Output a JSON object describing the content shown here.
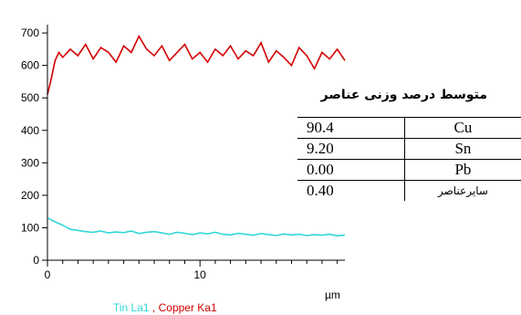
{
  "chart_data": {
    "type": "line",
    "x_axis": {
      "unit": "µm",
      "ticks": [
        0,
        10
      ],
      "xlim": [
        0,
        19.5
      ]
    },
    "y_axis": {
      "ticks": [
        0,
        100,
        200,
        300,
        400,
        500,
        600,
        700
      ],
      "ylim": [
        0,
        720
      ]
    },
    "series": [
      {
        "name": "Tin La1",
        "color": "#33d6d6",
        "x": [
          0,
          0.5,
          1,
          1.5,
          2,
          2.5,
          3,
          3.5,
          4,
          4.5,
          5,
          5.5,
          6,
          6.5,
          7,
          7.5,
          8,
          8.5,
          9,
          9.5,
          10,
          10.5,
          11,
          11.5,
          12,
          12.5,
          13,
          13.5,
          14,
          14.5,
          15,
          15.5,
          16,
          16.5,
          17,
          17.5,
          18,
          18.5,
          19,
          19.5
        ],
        "y": [
          130,
          118,
          108,
          95,
          92,
          88,
          86,
          90,
          84,
          87,
          85,
          90,
          82,
          86,
          88,
          84,
          80,
          86,
          83,
          79,
          84,
          81,
          86,
          80,
          78,
          83,
          80,
          77,
          82,
          79,
          76,
          81,
          78,
          80,
          76,
          79,
          77,
          80,
          75,
          78
        ]
      },
      {
        "name": "Copper Ka1",
        "color": "#d40000",
        "x": [
          0,
          0.25,
          0.5,
          0.75,
          1,
          1.5,
          2,
          2.5,
          3,
          3.5,
          4,
          4.5,
          5,
          5.5,
          6,
          6.5,
          7,
          7.5,
          8,
          8.5,
          9,
          9.5,
          10,
          10.5,
          11,
          11.5,
          12,
          12.5,
          13,
          13.5,
          14,
          14.5,
          15,
          15.5,
          16,
          16.5,
          17,
          17.5,
          18,
          18.5,
          19,
          19.5
        ],
        "y": [
          510,
          560,
          615,
          640,
          625,
          650,
          630,
          665,
          620,
          655,
          640,
          610,
          660,
          640,
          690,
          650,
          630,
          660,
          615,
          640,
          665,
          620,
          640,
          610,
          650,
          630,
          660,
          620,
          645,
          630,
          670,
          610,
          645,
          625,
          600,
          655,
          630,
          590,
          640,
          620,
          650,
          615
        ]
      }
    ]
  },
  "legend": {
    "tin": "Tin La1",
    "separator": " , ",
    "copper": "Copper Ka1"
  },
  "composition": {
    "title": "متوسط درصد وزنی عناصر",
    "rows": [
      {
        "value": "90.4",
        "element": "Cu"
      },
      {
        "value": "9.20",
        "element": "Sn"
      },
      {
        "value": "0.00",
        "element": "Pb"
      },
      {
        "value": "0.40",
        "element": "سایرعناصر"
      }
    ]
  }
}
